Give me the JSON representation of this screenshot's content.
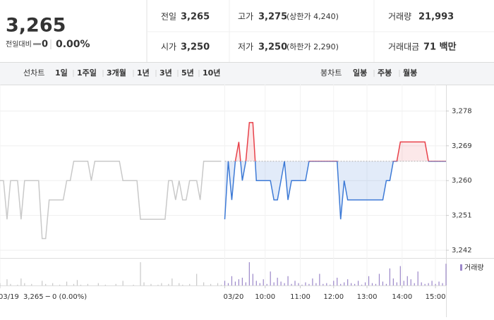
{
  "header": {
    "price": "3,265",
    "change_label": "전일대비",
    "change": "0",
    "change_rate": "0.00%",
    "stats": [
      [
        {
          "label": "전일",
          "value": "3,265"
        },
        {
          "label": "고가",
          "value": "3,275",
          "note": "(상한가 4,240)",
          "color": "#e0242b"
        },
        {
          "label": "거래량",
          "value": "21,993"
        }
      ],
      [
        {
          "label": "시가",
          "value": "3,250",
          "color": "#1a5fd6"
        },
        {
          "label": "저가",
          "value": "3,250",
          "note": "(하한가 2,290)",
          "color": "#1a5fd6"
        },
        {
          "label": "거래대금",
          "value": "71 백만"
        }
      ]
    ]
  },
  "tabs": {
    "line_label": "선차트",
    "line_items": [
      "1일",
      "1주일",
      "3개월",
      "1년",
      "3년",
      "5년",
      "10년"
    ],
    "line_active": 0,
    "candle_label": "봉차트",
    "candle_items": [
      "일봉",
      "주봉",
      "월봉"
    ]
  },
  "chart_data": {
    "type": "line",
    "xlim": [
      0,
      127
    ],
    "xticks": [
      {
        "value": 0,
        "label": "03/19"
      },
      {
        "value": 64,
        "label": "03/20"
      },
      {
        "value": 75.5,
        "label": "10:00"
      },
      {
        "value": 85.5,
        "label": "11:00"
      },
      {
        "value": 95,
        "label": "12:00"
      },
      {
        "value": 104.5,
        "label": "13:00"
      },
      {
        "value": 114.5,
        "label": "14:00"
      },
      {
        "value": 124,
        "label": "15:00"
      }
    ],
    "annotation": "3,265 ─ 0 (0.00%)",
    "ylim": [
      3240,
      3283
    ],
    "yticks": [
      {
        "value": 3242,
        "label": "3,242"
      },
      {
        "value": 3251,
        "label": "3,251"
      },
      {
        "value": 3260,
        "label": "3,260"
      },
      {
        "value": 3269,
        "label": "3,269"
      },
      {
        "value": 3278,
        "label": "3,278"
      }
    ],
    "baseline": 3265,
    "series": [
      {
        "color": "#c9c9c9",
        "values": [
          3260,
          3260,
          3250,
          3260,
          3260,
          3260,
          3250,
          3260,
          3260,
          3260,
          3260,
          3260,
          3245,
          3245,
          3255,
          3255,
          3255,
          3255,
          3255,
          3260,
          3260,
          3265,
          3265,
          3265,
          3265,
          3265,
          3260,
          3265,
          3265,
          3265,
          3265,
          3265,
          3265,
          3265,
          3265,
          3260,
          3260,
          3260,
          3260,
          3260,
          3250,
          3250,
          3250,
          3250,
          3250,
          3250,
          3250,
          3250,
          3260,
          3260,
          3255,
          3260,
          3255,
          3255,
          3260,
          3260,
          3260,
          3255,
          3265,
          3265,
          3265,
          3265,
          3265,
          3265,
          null,
          null,
          null,
          null,
          null,
          null,
          null,
          null,
          null,
          null,
          null,
          null,
          null,
          null,
          null,
          null,
          null,
          null,
          null,
          null,
          null,
          null,
          null,
          null,
          null,
          null,
          null,
          null,
          null,
          null,
          null,
          null,
          null,
          null,
          null,
          null,
          null,
          null,
          null,
          null,
          null,
          null,
          null,
          null,
          null,
          null,
          null,
          null,
          null,
          null,
          null,
          null,
          null,
          null,
          null,
          null,
          null,
          null,
          null,
          null,
          null,
          null,
          null,
          null
        ]
      },
      {
        "color": "#e8414a",
        "color_down": "#3d7ad6",
        "values": [
          null,
          null,
          null,
          null,
          null,
          null,
          null,
          null,
          null,
          null,
          null,
          null,
          null,
          null,
          null,
          null,
          null,
          null,
          null,
          null,
          null,
          null,
          null,
          null,
          null,
          null,
          null,
          null,
          null,
          null,
          null,
          null,
          null,
          null,
          null,
          null,
          null,
          null,
          null,
          null,
          null,
          null,
          null,
          null,
          null,
          null,
          null,
          null,
          null,
          null,
          null,
          null,
          null,
          null,
          null,
          null,
          null,
          null,
          null,
          null,
          null,
          null,
          null,
          null,
          3250,
          3265,
          3255,
          3265,
          3270,
          3260,
          3265,
          3275,
          3275,
          3260,
          3260,
          3260,
          3260,
          3260,
          3255,
          3255,
          3260,
          3265,
          3255,
          3260,
          3260,
          3260,
          3260,
          3260,
          3265,
          3265,
          3265,
          3265,
          3265,
          3265,
          3265,
          3265,
          3265,
          3250,
          3260,
          3255,
          3255,
          3255,
          3255,
          3255,
          3255,
          3255,
          3255,
          3255,
          3255,
          3255,
          3260,
          3260,
          3265,
          3265,
          3270,
          3270,
          3270,
          3270,
          3270,
          3270,
          3270,
          3270,
          3265,
          3265,
          3265,
          3265,
          3265,
          3265
        ]
      }
    ],
    "volume": {
      "name": "거래량",
      "ylim": [
        0,
        3000
      ],
      "series": [
        {
          "color": "#c8c8c8",
          "values": [
            300,
            0,
            800,
            200,
            0,
            100,
            900,
            300,
            0,
            200,
            0,
            0,
            600,
            200,
            0,
            300,
            0,
            100,
            0,
            500,
            0,
            200,
            700,
            100,
            0,
            200,
            0,
            0,
            300,
            0,
            100,
            0,
            0,
            200,
            0,
            600,
            0,
            0,
            100,
            0,
            3000,
            400,
            0,
            200,
            0,
            100,
            300,
            0,
            200,
            900,
            0,
            300,
            100,
            0,
            200,
            0,
            1500,
            0,
            400,
            0,
            200,
            0,
            300,
            100,
            null,
            null,
            null,
            null,
            null,
            null,
            null,
            null,
            null,
            null,
            null,
            null,
            null,
            null,
            null,
            null,
            null,
            null,
            null,
            null,
            null,
            null,
            null,
            null,
            null,
            null,
            null,
            null,
            null,
            null,
            null,
            null,
            null,
            null,
            null,
            null,
            null,
            null,
            null,
            null,
            null,
            null,
            null,
            null,
            null,
            null,
            null,
            null,
            null,
            null,
            null,
            null,
            null,
            null,
            null,
            null,
            null,
            null,
            null,
            null,
            null,
            null,
            null,
            null
          ]
        },
        {
          "color": "#9b87c9",
          "values": [
            null,
            null,
            null,
            null,
            null,
            null,
            null,
            null,
            null,
            null,
            null,
            null,
            null,
            null,
            null,
            null,
            null,
            null,
            null,
            null,
            null,
            null,
            null,
            null,
            null,
            null,
            null,
            null,
            null,
            null,
            null,
            null,
            null,
            null,
            null,
            null,
            null,
            null,
            null,
            null,
            null,
            null,
            null,
            null,
            null,
            null,
            null,
            null,
            null,
            null,
            null,
            null,
            null,
            null,
            null,
            null,
            null,
            null,
            null,
            null,
            null,
            null,
            null,
            null,
            600,
            300,
            1200,
            500,
            800,
            1000,
            400,
            3000,
            1500,
            600,
            300,
            800,
            200,
            1800,
            400,
            1000,
            500,
            300,
            1200,
            200,
            600,
            300,
            100,
            400,
            200,
            900,
            300,
            1500,
            200,
            300,
            100,
            600,
            1000,
            200,
            400,
            800,
            300,
            200,
            600,
            100,
            400,
            1200,
            300,
            200,
            1500,
            500,
            200,
            2200,
            900,
            400,
            2500,
            600,
            1200,
            800,
            300,
            1800,
            400,
            200,
            300,
            600,
            200,
            500,
            300,
            2800
          ]
        }
      ]
    }
  }
}
